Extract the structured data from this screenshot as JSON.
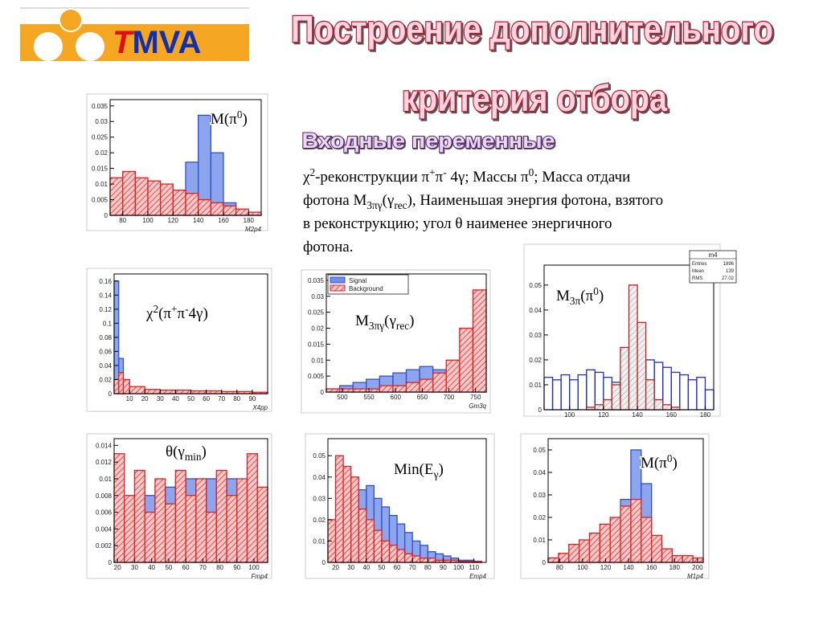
{
  "logo": {
    "accent": "T",
    "rest": "MVA"
  },
  "title": [
    "Построение дополнительного",
    "критерия отбора"
  ],
  "subtitle": "Входные переменные",
  "description": [
    [
      {
        "t": "χ"
      },
      {
        "t": "2",
        "sup": true
      },
      {
        "t": "-реконструкции π"
      },
      {
        "t": "+",
        "sup": true
      },
      {
        "t": "π"
      },
      {
        "t": "-",
        "sup": true
      },
      {
        "t": " 4γ; Массы π"
      },
      {
        "t": "0",
        "sup": true
      },
      {
        "t": "; Масса отдачи"
      }
    ],
    [
      {
        "t": "фотона M"
      },
      {
        "t": "3πγ",
        "sub": true
      },
      {
        "t": "(γ"
      },
      {
        "t": "rec",
        "sub": true
      },
      {
        "t": "), Наименьшая энергия фотона, взятого"
      }
    ],
    [
      {
        "t": "в реконструкцию; угол θ наименее энергичного"
      }
    ],
    [
      {
        "t": "фотона."
      }
    ]
  ],
  "plots": [
    {
      "label": [
        {
          "t": "M(π"
        },
        {
          "t": "0",
          "sup": true
        },
        {
          "t": ")"
        }
      ],
      "axis": "M2p4",
      "xlim": [
        70,
        190
      ],
      "xticks": [
        80,
        100,
        120,
        140,
        160,
        180
      ],
      "ylim": [
        0,
        0.037
      ],
      "yticks": [
        0,
        0.005,
        0.01,
        0.015,
        0.02,
        0.025,
        0.03,
        0.035
      ],
      "bins": [
        70,
        80,
        90,
        100,
        110,
        120,
        130,
        140,
        150,
        160,
        170,
        180,
        190
      ],
      "series": [
        {
          "color": "#3050d0",
          "style": "solid",
          "values": [
            0.001,
            0.002,
            0.003,
            0.004,
            0.005,
            0.008,
            0.017,
            0.032,
            0.02,
            0.004,
            0.001,
            0.0005
          ]
        },
        {
          "color": "#e02020",
          "style": "hatch",
          "values": [
            0.012,
            0.014,
            0.012,
            0.011,
            0.01,
            0.008,
            0.007,
            0.005,
            0.004,
            0.003,
            0.002,
            0.001
          ]
        }
      ]
    },
    {
      "label": [
        {
          "t": "χ"
        },
        {
          "t": "2",
          "sup": true
        },
        {
          "t": "(π"
        },
        {
          "t": "+",
          "sup": true
        },
        {
          "t": "π"
        },
        {
          "t": "-",
          "sup": true
        },
        {
          "t": "4γ)"
        }
      ],
      "axis": "X4pp",
      "xlim": [
        0,
        100
      ],
      "xticks": [
        10,
        20,
        30,
        40,
        50,
        60,
        70,
        80,
        90
      ],
      "ylim": [
        0,
        0.17
      ],
      "yticks": [
        0,
        0.02,
        0.04,
        0.06,
        0.08,
        0.1,
        0.12,
        0.14,
        0.16
      ],
      "bins": [
        0,
        3,
        6,
        10,
        20,
        30,
        40,
        50,
        60,
        70,
        80,
        90,
        100
      ],
      "series": [
        {
          "color": "#3050d0",
          "style": "solid",
          "values": [
            0.16,
            0.05,
            0.02,
            0.006,
            0.003,
            0.002,
            0.002,
            0.001,
            0.001,
            0.001,
            0.001,
            0.001
          ]
        },
        {
          "color": "#e02020",
          "style": "hatch",
          "values": [
            0.02,
            0.03,
            0.02,
            0.01,
            0.006,
            0.005,
            0.005,
            0.004,
            0.004,
            0.003,
            0.003,
            0.002
          ]
        }
      ]
    },
    {
      "label": [
        {
          "t": "M"
        },
        {
          "t": "3πγ",
          "sub": true
        },
        {
          "t": "(γ"
        },
        {
          "t": "rec",
          "sub": true
        },
        {
          "t": ")"
        }
      ],
      "axis": "Gm3q",
      "xlim": [
        470,
        770
      ],
      "xticks": [
        500,
        550,
        600,
        650,
        700,
        750
      ],
      "ylim": [
        0,
        0.037
      ],
      "yticks": [
        0,
        0.005,
        0.01,
        0.015,
        0.02,
        0.025,
        0.03,
        0.035
      ],
      "bins": [
        470,
        495,
        520,
        545,
        570,
        595,
        620,
        645,
        670,
        695,
        720,
        745,
        770
      ],
      "series": [
        {
          "name": "Signal",
          "color": "#3050d0",
          "style": "solid",
          "values": [
            0.001,
            0.002,
            0.003,
            0.004,
            0.005,
            0.006,
            0.007,
            0.008,
            0.007,
            0.004,
            0.002,
            0.001
          ]
        },
        {
          "name": "Background",
          "color": "#e02020",
          "style": "hatch",
          "values": [
            0.001,
            0.001,
            0.001,
            0.001,
            0.002,
            0.002,
            0.003,
            0.004,
            0.006,
            0.01,
            0.02,
            0.032
          ]
        }
      ]
    },
    {
      "label": [
        {
          "t": "M"
        },
        {
          "t": "3π",
          "sub": true
        },
        {
          "t": "(π"
        },
        {
          "t": "0",
          "sup": true
        },
        {
          "t": ")"
        }
      ],
      "xlim": [
        85,
        185
      ],
      "xticks": [
        100,
        120,
        140,
        160,
        180
      ],
      "ylim": [
        0,
        0.058
      ],
      "yticks": [
        0,
        0.01,
        0.02,
        0.03,
        0.04,
        0.05
      ],
      "bins": [
        85,
        90,
        95,
        100,
        105,
        110,
        115,
        120,
        125,
        130,
        135,
        140,
        145,
        150,
        155,
        160,
        165,
        170,
        175,
        180,
        185
      ],
      "stats": {
        "name": "m4",
        "rows": [
          [
            "Entries",
            1896
          ],
          [
            "Mean",
            139
          ],
          [
            "RMS",
            27.02
          ]
        ]
      },
      "series": [
        {
          "color": "#2030c0",
          "style": "outline",
          "values": [
            0.013,
            0.012,
            0.014,
            0.012,
            0.014,
            0.016,
            0.015,
            0.013,
            0.011,
            0.013,
            0.017,
            0.019,
            0.02,
            0.019,
            0.017,
            0.015,
            0.014,
            0.012,
            0.013,
            0.008
          ]
        },
        {
          "color": "#c02020",
          "style": "hatch",
          "values": [
            0,
            0,
            0,
            0,
            0,
            0.001,
            0.002,
            0.004,
            0.01,
            0.025,
            0.05,
            0.035,
            0.012,
            0.004,
            0.002,
            0.001,
            0,
            0,
            0,
            0
          ]
        }
      ]
    },
    {
      "label": [
        {
          "t": "θ(γ"
        },
        {
          "t": "min",
          "sub": true
        },
        {
          "t": ")"
        }
      ],
      "axis": "Fmp4",
      "xlim": [
        18,
        108
      ],
      "xticks": [
        20,
        30,
        40,
        50,
        60,
        70,
        80,
        90,
        100
      ],
      "ylim": [
        0,
        0.0148
      ],
      "yticks": [
        0,
        0.002,
        0.004,
        0.006,
        0.008,
        0.01,
        0.012,
        0.014
      ],
      "bins": [
        18,
        24,
        30,
        36,
        42,
        48,
        54,
        60,
        66,
        72,
        78,
        84,
        90,
        96,
        102,
        108
      ],
      "series": [
        {
          "color": "#3050d0",
          "style": "solid",
          "values": [
            0.004,
            0.006,
            0.007,
            0.008,
            0.009,
            0.009,
            0.01,
            0.01,
            0.009,
            0.01,
            0.009,
            0.01,
            0.008,
            0.008,
            0.007
          ]
        },
        {
          "color": "#e02020",
          "style": "hatch",
          "values": [
            0.013,
            0.008,
            0.011,
            0.006,
            0.01,
            0.007,
            0.011,
            0.008,
            0.01,
            0.006,
            0.011,
            0.008,
            0.01,
            0.013,
            0.009
          ]
        }
      ]
    },
    {
      "label": [
        {
          "t": "Min(E"
        },
        {
          "t": "γ",
          "sub": true
        },
        {
          "t": ")"
        }
      ],
      "axis": "Emp4",
      "xlim": [
        15,
        118
      ],
      "xticks": [
        20,
        30,
        40,
        50,
        60,
        70,
        80,
        90,
        100,
        110
      ],
      "ylim": [
        0,
        0.058
      ],
      "yticks": [
        0,
        0.01,
        0.02,
        0.03,
        0.04,
        0.05
      ],
      "bins": [
        15,
        20,
        25,
        30,
        35,
        40,
        45,
        50,
        55,
        60,
        65,
        70,
        75,
        80,
        85,
        90,
        95,
        100,
        105,
        110,
        115
      ],
      "series": [
        {
          "color": "#3050d0",
          "style": "solid",
          "values": [
            0.01,
            0.02,
            0.03,
            0.032,
            0.034,
            0.036,
            0.03,
            0.026,
            0.022,
            0.018,
            0.014,
            0.01,
            0.008,
            0.005,
            0.004,
            0.003,
            0.002,
            0.001,
            0.001,
            0.0005
          ]
        },
        {
          "color": "#e02020",
          "style": "hatch",
          "values": [
            0.02,
            0.05,
            0.045,
            0.04,
            0.025,
            0.02,
            0.015,
            0.01,
            0.008,
            0.006,
            0.004,
            0.003,
            0.002,
            0.002,
            0.001,
            0.001,
            0.001,
            0.0005,
            0.0005,
            0.0005
          ]
        }
      ]
    },
    {
      "label": [
        {
          "t": "M(π"
        },
        {
          "t": "0",
          "sup": true
        },
        {
          "t": ")"
        }
      ],
      "axis": "M1p4",
      "xlim": [
        70,
        205
      ],
      "xticks": [
        80,
        100,
        120,
        140,
        160,
        180,
        200
      ],
      "ylim": [
        0,
        0.055
      ],
      "yticks": [
        0,
        0.01,
        0.02,
        0.03,
        0.04,
        0.05
      ],
      "bins": [
        70,
        79,
        88,
        97,
        106,
        115,
        124,
        133,
        142,
        151,
        160,
        169,
        178,
        187,
        196,
        205
      ],
      "series": [
        {
          "color": "#3050d0",
          "style": "solid",
          "values": [
            0.001,
            0.002,
            0.003,
            0.004,
            0.006,
            0.01,
            0.015,
            0.028,
            0.05,
            0.035,
            0.01,
            0.003,
            0.001,
            0.001,
            0.0005
          ]
        },
        {
          "color": "#e02020",
          "style": "hatch",
          "values": [
            0.002,
            0.004,
            0.008,
            0.01,
            0.013,
            0.017,
            0.02,
            0.025,
            0.028,
            0.02,
            0.012,
            0.006,
            0.003,
            0.003,
            0.002
          ]
        }
      ]
    }
  ]
}
